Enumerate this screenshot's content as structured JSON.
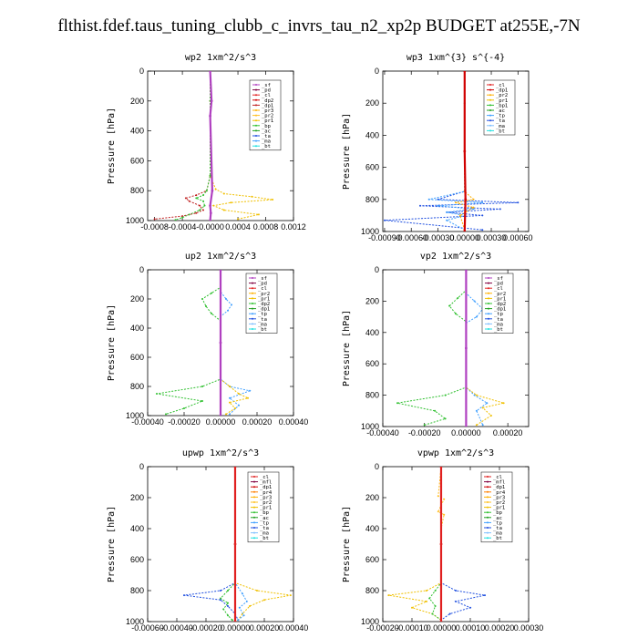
{
  "page": {
    "title": "flthist.fdef.taus_tuning_clubb_c_invrs_tau_n2_xp2p  BUDGET at255E,-7N"
  },
  "chart_data": [
    {
      "type": "line",
      "title": "wp2  1xm^2/s^3",
      "ylabel": "Pressure [hPa]",
      "xlim": [
        -0.0009,
        0.0012
      ],
      "ylim": [
        1000,
        0
      ],
      "xticks": [
        -0.0008,
        -0.0004,
        0,
        0.0004,
        0.0008,
        0.0012
      ],
      "xtick_labels": [
        "-0.0008",
        "-0.0004",
        "-0.0000",
        "0.0004",
        "0.0008",
        "0.0012"
      ],
      "yticks": [
        0,
        200,
        400,
        600,
        800,
        1000
      ],
      "legend": [
        "_sf",
        "_pd",
        "_cl",
        "_dp2",
        "_dp1",
        "_pr3",
        "_pr2",
        "_pr1",
        "_bp",
        "_ac",
        "_ta",
        "_ma",
        "_bt"
      ],
      "colors": [
        "#b040c0",
        "#800040",
        "#e02020",
        "#d00000",
        "#c02020",
        "#ffb000",
        "#ffc020",
        "#f0c000",
        "#30c030",
        "#20a020",
        "#2050e0",
        "#40a0ff",
        "#20e0e0"
      ],
      "series": [
        {
          "name": "_dp1",
          "x": [
            0,
            0,
            0,
            -5e-05,
            -0.0002,
            -0.00035,
            -0.0003,
            -0.00015,
            -0.0001,
            -0.0002,
            -0.0004,
            -0.0008
          ],
          "y": [
            0,
            200,
            700,
            800,
            830,
            850,
            870,
            900,
            930,
            950,
            970,
            990
          ]
        },
        {
          "name": "_pr1",
          "x": [
            0,
            0,
            0,
            8e-05,
            0.0002,
            0.0006,
            0.0009,
            0.0003,
            5e-05,
            0.0002,
            0.0007,
            0.0004
          ],
          "y": [
            0,
            200,
            700,
            790,
            820,
            840,
            860,
            880,
            900,
            930,
            960,
            990
          ]
        },
        {
          "name": "_bp",
          "x": [
            0,
            0,
            0,
            -5e-05,
            -0.0001,
            -0.0002,
            -0.0001,
            -8e-05,
            -0.00015,
            -0.0003,
            -0.0004,
            -0.0005
          ],
          "y": [
            0,
            200,
            700,
            800,
            830,
            850,
            870,
            900,
            930,
            960,
            980,
            995
          ]
        },
        {
          "name": "_sf",
          "x": [
            0,
            2e-05,
            0,
            3e-05,
            0,
            1e-05,
            0
          ],
          "y": [
            0,
            200,
            300,
            800,
            900,
            950,
            1000
          ]
        }
      ]
    },
    {
      "type": "line",
      "title": "wp3  1xm^{3} s^{-4}",
      "ylabel": "Pressure [hPa]",
      "xlim": [
        -0.00092,
        0.00072
      ],
      "ylim": [
        1000,
        0
      ],
      "xticks": [
        -0.0009,
        -0.0006,
        -0.0003,
        0,
        0.0003,
        0.0006
      ],
      "xtick_labels": [
        "-0.00090",
        "-0.00060",
        "-0.00030",
        "0.00000",
        "0.00030",
        "0.00060"
      ],
      "yticks": [
        0,
        200,
        400,
        600,
        800,
        1000
      ],
      "legend": [
        "_cl",
        "_dp1",
        "_pr2",
        "_pr1",
        "_bp1",
        "_ac",
        "_tp",
        "_ta",
        "_ma",
        "_bt"
      ],
      "colors": [
        "#e02020",
        "#d00000",
        "#ffb000",
        "#f0c000",
        "#30c030",
        "#20a020",
        "#40a0ff",
        "#2050e0",
        "#80c0ff",
        "#20e0e0"
      ],
      "series": [
        {
          "name": "_ta",
          "x": [
            0,
            0,
            0,
            -0.0003,
            0.0006,
            -0.0005,
            0.0004,
            -0.0002,
            0.0002,
            -0.0009,
            0.0002
          ],
          "y": [
            0,
            200,
            750,
            800,
            820,
            840,
            860,
            880,
            900,
            930,
            990
          ]
        },
        {
          "name": "_tp",
          "x": [
            0,
            0,
            0,
            -0.0004,
            0.0002,
            -0.0003,
            0.0001,
            -0.0002,
            0,
            -0.0002,
            0
          ],
          "y": [
            0,
            200,
            750,
            800,
            820,
            840,
            860,
            880,
            900,
            930,
            990
          ]
        },
        {
          "name": "_pr2",
          "x": [
            0,
            0,
            0,
            0.0001,
            -0.0001,
            0.0001,
            -5e-05,
            0
          ],
          "y": [
            0,
            200,
            750,
            800,
            820,
            850,
            900,
            990
          ]
        },
        {
          "name": "_dp1",
          "x": [
            0,
            0,
            1e-05,
            0
          ],
          "y": [
            0,
            500,
            800,
            1000
          ]
        }
      ]
    },
    {
      "type": "line",
      "title": "up2  1xm^2/s^3",
      "ylabel": "Pressure [hPa]",
      "xlim": [
        -0.0004,
        0.0004
      ],
      "ylim": [
        1000,
        0
      ],
      "xticks": [
        -0.0004,
        -0.0002,
        0,
        0.0002,
        0.0004
      ],
      "xtick_labels": [
        "-0.00040",
        "-0.00020",
        "0.00000",
        "0.00020",
        "0.00040"
      ],
      "yticks": [
        0,
        200,
        400,
        600,
        800,
        1000
      ],
      "legend": [
        "_sf",
        "_pd",
        "_cl",
        "_pr2",
        "_pr1",
        "_dp2",
        "_dp1",
        "_tp",
        "_ta",
        "_ma",
        "_bt"
      ],
      "colors": [
        "#b040c0",
        "#800040",
        "#e02020",
        "#ffb000",
        "#f0c000",
        "#30c030",
        "#20a020",
        "#40a0ff",
        "#2050e0",
        "#80c0ff",
        "#20e0e0"
      ],
      "series": [
        {
          "name": "_dp2",
          "x": [
            0,
            0,
            -5e-05,
            -0.0001,
            -8e-05,
            -5e-05,
            0,
            0,
            -0.0001,
            -0.00035,
            -0.0001,
            -0.0002,
            -0.0003
          ],
          "y": [
            0,
            120,
            160,
            200,
            250,
            300,
            350,
            750,
            800,
            850,
            900,
            950,
            990
          ]
        },
        {
          "name": "_tp",
          "x": [
            0,
            0,
            3e-05,
            6e-05,
            4e-05,
            0,
            0,
            5e-05,
            0.00016,
            5e-05,
            0.0001,
            5e-05
          ],
          "y": [
            0,
            150,
            200,
            240,
            280,
            320,
            750,
            800,
            830,
            880,
            930,
            990
          ]
        },
        {
          "name": "_pr1",
          "x": [
            0,
            0,
            5e-05,
            0.0001,
            0.00015,
            5e-05,
            8e-05,
            3e-05
          ],
          "y": [
            0,
            750,
            800,
            850,
            880,
            910,
            950,
            990
          ]
        },
        {
          "name": "_sf",
          "x": [
            0,
            0,
            0
          ],
          "y": [
            0,
            500,
            1000
          ]
        }
      ]
    },
    {
      "type": "line",
      "title": "vp2  1xm^2/s^3",
      "ylabel": "Pressure [hPa]",
      "xlim": [
        -0.0004,
        0.0003
      ],
      "ylim": [
        1000,
        0
      ],
      "xticks": [
        -0.0004,
        -0.0002,
        0,
        0.0002
      ],
      "xtick_labels": [
        "-0.00040",
        "-0.00020",
        "0.00000",
        "0.00020"
      ],
      "yticks": [
        0,
        200,
        400,
        600,
        800,
        1000
      ],
      "legend": [
        "_sf",
        "_pd",
        "_cl",
        "_pr2",
        "_pr1",
        "_dp2",
        "_dp1",
        "_tp",
        "_ta",
        "_ma",
        "_bt"
      ],
      "colors": [
        "#b040c0",
        "#800040",
        "#e02020",
        "#ffb000",
        "#f0c000",
        "#30c030",
        "#20a020",
        "#40a0ff",
        "#2050e0",
        "#80c0ff",
        "#20e0e0"
      ],
      "series": [
        {
          "name": "_dp2",
          "x": [
            0,
            0,
            -4e-05,
            -8e-05,
            -5e-05,
            0,
            0,
            -0.0001,
            -0.00033,
            -0.00015,
            -0.0001,
            -0.0002
          ],
          "y": [
            0,
            130,
            180,
            230,
            280,
            330,
            750,
            800,
            850,
            900,
            950,
            990
          ]
        },
        {
          "name": "_tp",
          "x": [
            0,
            0,
            4e-05,
            8e-05,
            5e-05,
            0,
            0,
            4e-05,
            0.0001,
            5e-05,
            8e-05
          ],
          "y": [
            0,
            150,
            200,
            250,
            300,
            340,
            750,
            800,
            850,
            900,
            990
          ]
        },
        {
          "name": "_pr1",
          "x": [
            0,
            0,
            5e-05,
            0.00018,
            8e-05,
            0.00012,
            5e-05
          ],
          "y": [
            0,
            750,
            800,
            850,
            880,
            930,
            990
          ]
        },
        {
          "name": "_sf",
          "x": [
            0,
            0,
            0
          ],
          "y": [
            0,
            500,
            1000
          ]
        }
      ]
    },
    {
      "type": "line",
      "title": "upwp  1xm^2/s^3",
      "ylabel": "Pressure [hPa]",
      "xlim": [
        -0.0006,
        0.0004
      ],
      "ylim": [
        1000,
        0
      ],
      "xticks": [
        -0.0006,
        -0.0004,
        -0.0002,
        0,
        0.0002,
        0.0004
      ],
      "xtick_labels": [
        "-0.00060",
        "-0.00040",
        "-0.00020",
        "0.00000",
        "0.00020",
        "0.00040"
      ],
      "yticks": [
        0,
        200,
        400,
        600,
        800,
        1000
      ],
      "legend": [
        "_cl",
        "_mfl",
        "_dp1",
        "_pr4",
        "_pr3",
        "_pr2",
        "_pr1",
        "_bp",
        "_ac",
        "_tp",
        "_ta",
        "_ma",
        "_bt"
      ],
      "colors": [
        "#e02020",
        "#800040",
        "#d00000",
        "#ff8000",
        "#ffb000",
        "#ffc020",
        "#f0c000",
        "#30c030",
        "#20a020",
        "#40a0ff",
        "#2050e0",
        "#80c0ff",
        "#20e0e0"
      ],
      "series": [
        {
          "name": "_ta",
          "x": [
            0,
            0,
            0,
            -0.0001,
            -0.00035,
            -0.0001,
            -5e-05,
            0,
            2e-05
          ],
          "y": [
            0,
            200,
            750,
            800,
            830,
            860,
            900,
            950,
            990
          ]
        },
        {
          "name": "_pr1",
          "x": [
            0,
            0,
            0,
            0.00015,
            0.00038,
            0.0002,
            0.0001,
            5e-05,
            2e-05
          ],
          "y": [
            0,
            200,
            750,
            800,
            830,
            860,
            900,
            950,
            990
          ]
        },
        {
          "name": "_bp",
          "x": [
            0,
            0,
            0,
            -5e-05,
            -0.0001,
            -5e-05,
            -8e-05,
            -5e-05,
            -2e-05
          ],
          "y": [
            0,
            200,
            750,
            800,
            850,
            880,
            920,
            960,
            990
          ]
        },
        {
          "name": "_tp",
          "x": [
            0,
            0,
            5e-05,
            8e-05,
            3e-05,
            6e-05,
            2e-05
          ],
          "y": [
            0,
            750,
            820,
            870,
            910,
            960,
            990
          ]
        },
        {
          "name": "_cl",
          "x": [
            0,
            0,
            0
          ],
          "y": [
            0,
            500,
            1000
          ]
        }
      ]
    },
    {
      "type": "line",
      "title": "vpwp  1xm^2/s^3",
      "ylabel": "Pressure [hPa]",
      "xlim": [
        -0.0002,
        0.0003
      ],
      "ylim": [
        1000,
        0
      ],
      "xticks": [
        -0.0002,
        -0.0001,
        0,
        0.0001,
        0.0002,
        0.0003
      ],
      "xtick_labels": [
        "-0.00020",
        "-0.00010",
        "0.00000",
        "0.00010",
        "0.00020",
        "0.00030"
      ],
      "yticks": [
        0,
        200,
        400,
        600,
        800,
        1000
      ],
      "legend": [
        "_cl",
        "_mfl",
        "_dp1",
        "_pr4",
        "_pr3",
        "_pr2",
        "_pr1",
        "_bp",
        "_ac",
        "_tp",
        "_ta",
        "_ma",
        "_bt"
      ],
      "colors": [
        "#e02020",
        "#800040",
        "#d00000",
        "#ff8000",
        "#ffb000",
        "#ffc020",
        "#f0c000",
        "#30c030",
        "#20a020",
        "#40a0ff",
        "#2050e0",
        "#80c0ff",
        "#20e0e0"
      ],
      "series": [
        {
          "name": "_ta",
          "x": [
            0,
            0,
            0,
            5e-05,
            0.00015,
            5e-05,
            0.0001,
            3e-05,
            0
          ],
          "y": [
            0,
            200,
            750,
            800,
            830,
            870,
            910,
            950,
            990
          ]
        },
        {
          "name": "_pr1",
          "x": [
            0,
            0,
            0,
            -5e-05,
            -0.00018,
            -5e-05,
            -0.0001,
            -3e-05,
            0
          ],
          "y": [
            0,
            200,
            750,
            800,
            830,
            870,
            910,
            950,
            990
          ]
        },
        {
          "name": "_bp",
          "x": [
            0,
            0,
            0,
            -2e-05,
            -4e-05,
            -2e-05,
            -3e-05,
            0
          ],
          "y": [
            0,
            200,
            750,
            800,
            850,
            900,
            950,
            990
          ]
        },
        {
          "name": "_pr2",
          "x": [
            0,
            -1e-05,
            1e-05,
            0,
            -1e-05,
            1e-05,
            0
          ],
          "y": [
            0,
            190,
            210,
            250,
            290,
            310,
            400
          ]
        },
        {
          "name": "_cl",
          "x": [
            0,
            0,
            0
          ],
          "y": [
            0,
            500,
            1000
          ]
        }
      ]
    }
  ]
}
